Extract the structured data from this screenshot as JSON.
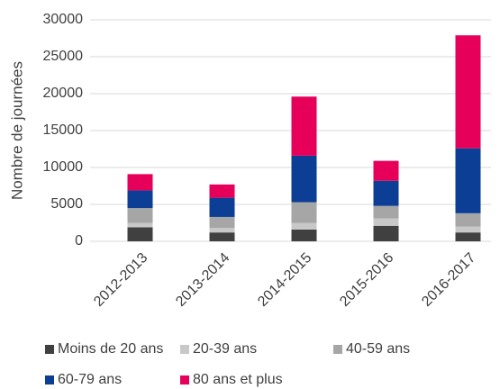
{
  "chart_data": {
    "type": "stacked_bar",
    "y_label": "Nombre de journées",
    "categories": [
      "2012-2013",
      "2013-2014",
      "2014-2015",
      "2015-2016",
      "2016-2017"
    ],
    "series": [
      {
        "name": "Moins de 20 ans",
        "color": "#404040",
        "values": [
          1900,
          1200,
          1600,
          2100,
          1200
        ]
      },
      {
        "name": "20-39 ans",
        "color": "#c8c8c8",
        "values": [
          600,
          600,
          900,
          1000,
          800
        ]
      },
      {
        "name": "40-59 ans",
        "color": "#a6a6a6",
        "values": [
          2000,
          1500,
          2800,
          1700,
          1800
        ]
      },
      {
        "name": "60-79 ans",
        "color": "#0b3e94",
        "values": [
          2400,
          2600,
          6300,
          3400,
          8800
        ]
      },
      {
        "name": "80 ans et plus",
        "color": "#e6005a",
        "values": [
          2200,
          1800,
          8000,
          2700,
          15300
        ]
      }
    ],
    "ylim": [
      0,
      30000
    ],
    "yticks": [
      0,
      5000,
      10000,
      15000,
      20000,
      25000,
      30000
    ],
    "grid": true
  }
}
